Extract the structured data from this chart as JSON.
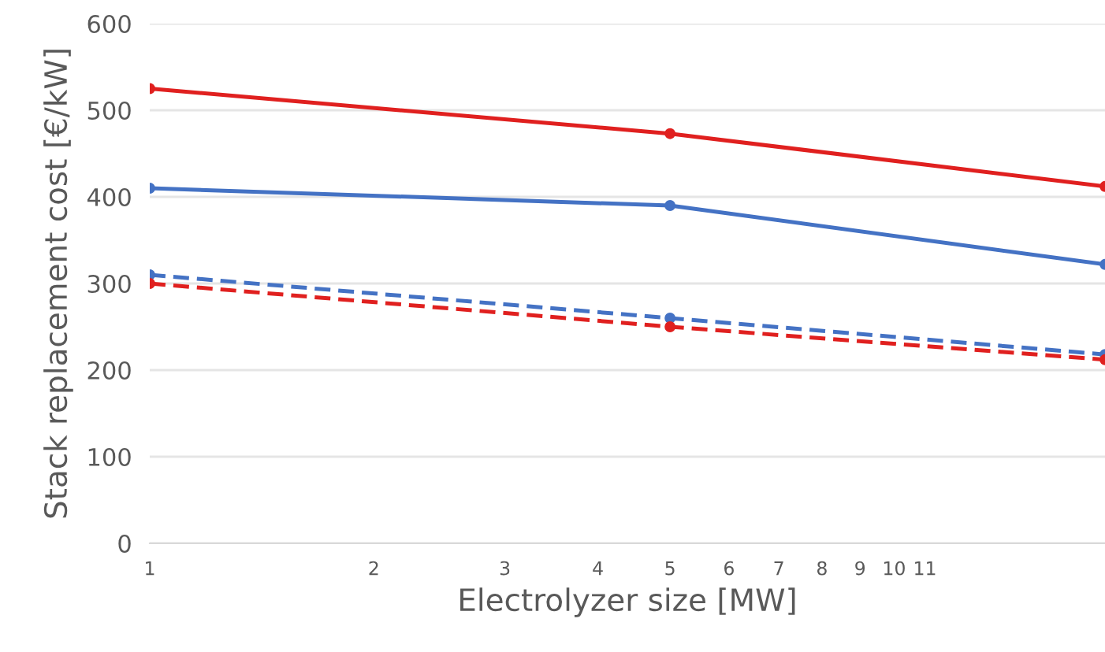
{
  "chart_data": {
    "type": "line",
    "xlabel": "Electrolyzer size [MW]",
    "ylabel": "Stack replacement cost [€/kW]",
    "log": "x",
    "grid": "y",
    "marker": "circle",
    "xlim": [
      1,
      19.2
    ],
    "xticks": [
      1,
      2,
      3,
      4,
      5,
      6,
      7,
      8,
      9,
      10,
      11
    ],
    "ylim": [
      0,
      600
    ],
    "yticks": [
      0,
      100,
      200,
      300,
      400,
      500,
      600
    ],
    "series": [
      {
        "color": "#e0201f",
        "line_style": "solid",
        "x": [
          1,
          5,
          19.2
        ],
        "values": [
          525,
          473,
          412
        ]
      },
      {
        "color": "#4472c4",
        "line_style": "solid",
        "x": [
          1,
          5,
          19.2
        ],
        "values": [
          410,
          390,
          322
        ]
      },
      {
        "color": "#4472c4",
        "line_style": "dashed",
        "x": [
          1,
          5,
          19.2
        ],
        "values": [
          310,
          260,
          218
        ]
      },
      {
        "color": "#e0201f",
        "line_style": "dashed",
        "x": [
          1,
          5,
          19.2
        ],
        "values": [
          300,
          250,
          212
        ]
      }
    ]
  }
}
